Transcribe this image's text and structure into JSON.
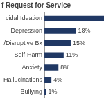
{
  "chart_data": {
    "type": "bar",
    "title": "f Request for Service",
    "orientation": "horizontal",
    "categories": [
      "cidal Ideation",
      "Depression",
      "/Disruptive Bx",
      "Self-Harm",
      "Anxiety",
      "Hallucinations",
      "Bullying"
    ],
    "values": [
      34,
      18,
      15,
      11,
      8,
      4,
      1
    ],
    "value_labels": [
      null,
      "18%",
      "15%",
      "11%",
      "8%",
      "4%",
      "1%"
    ],
    "color": "#203864",
    "xlim": [
      0,
      34
    ],
    "grid": false,
    "data_labels": true,
    "tick_labels": "y"
  }
}
